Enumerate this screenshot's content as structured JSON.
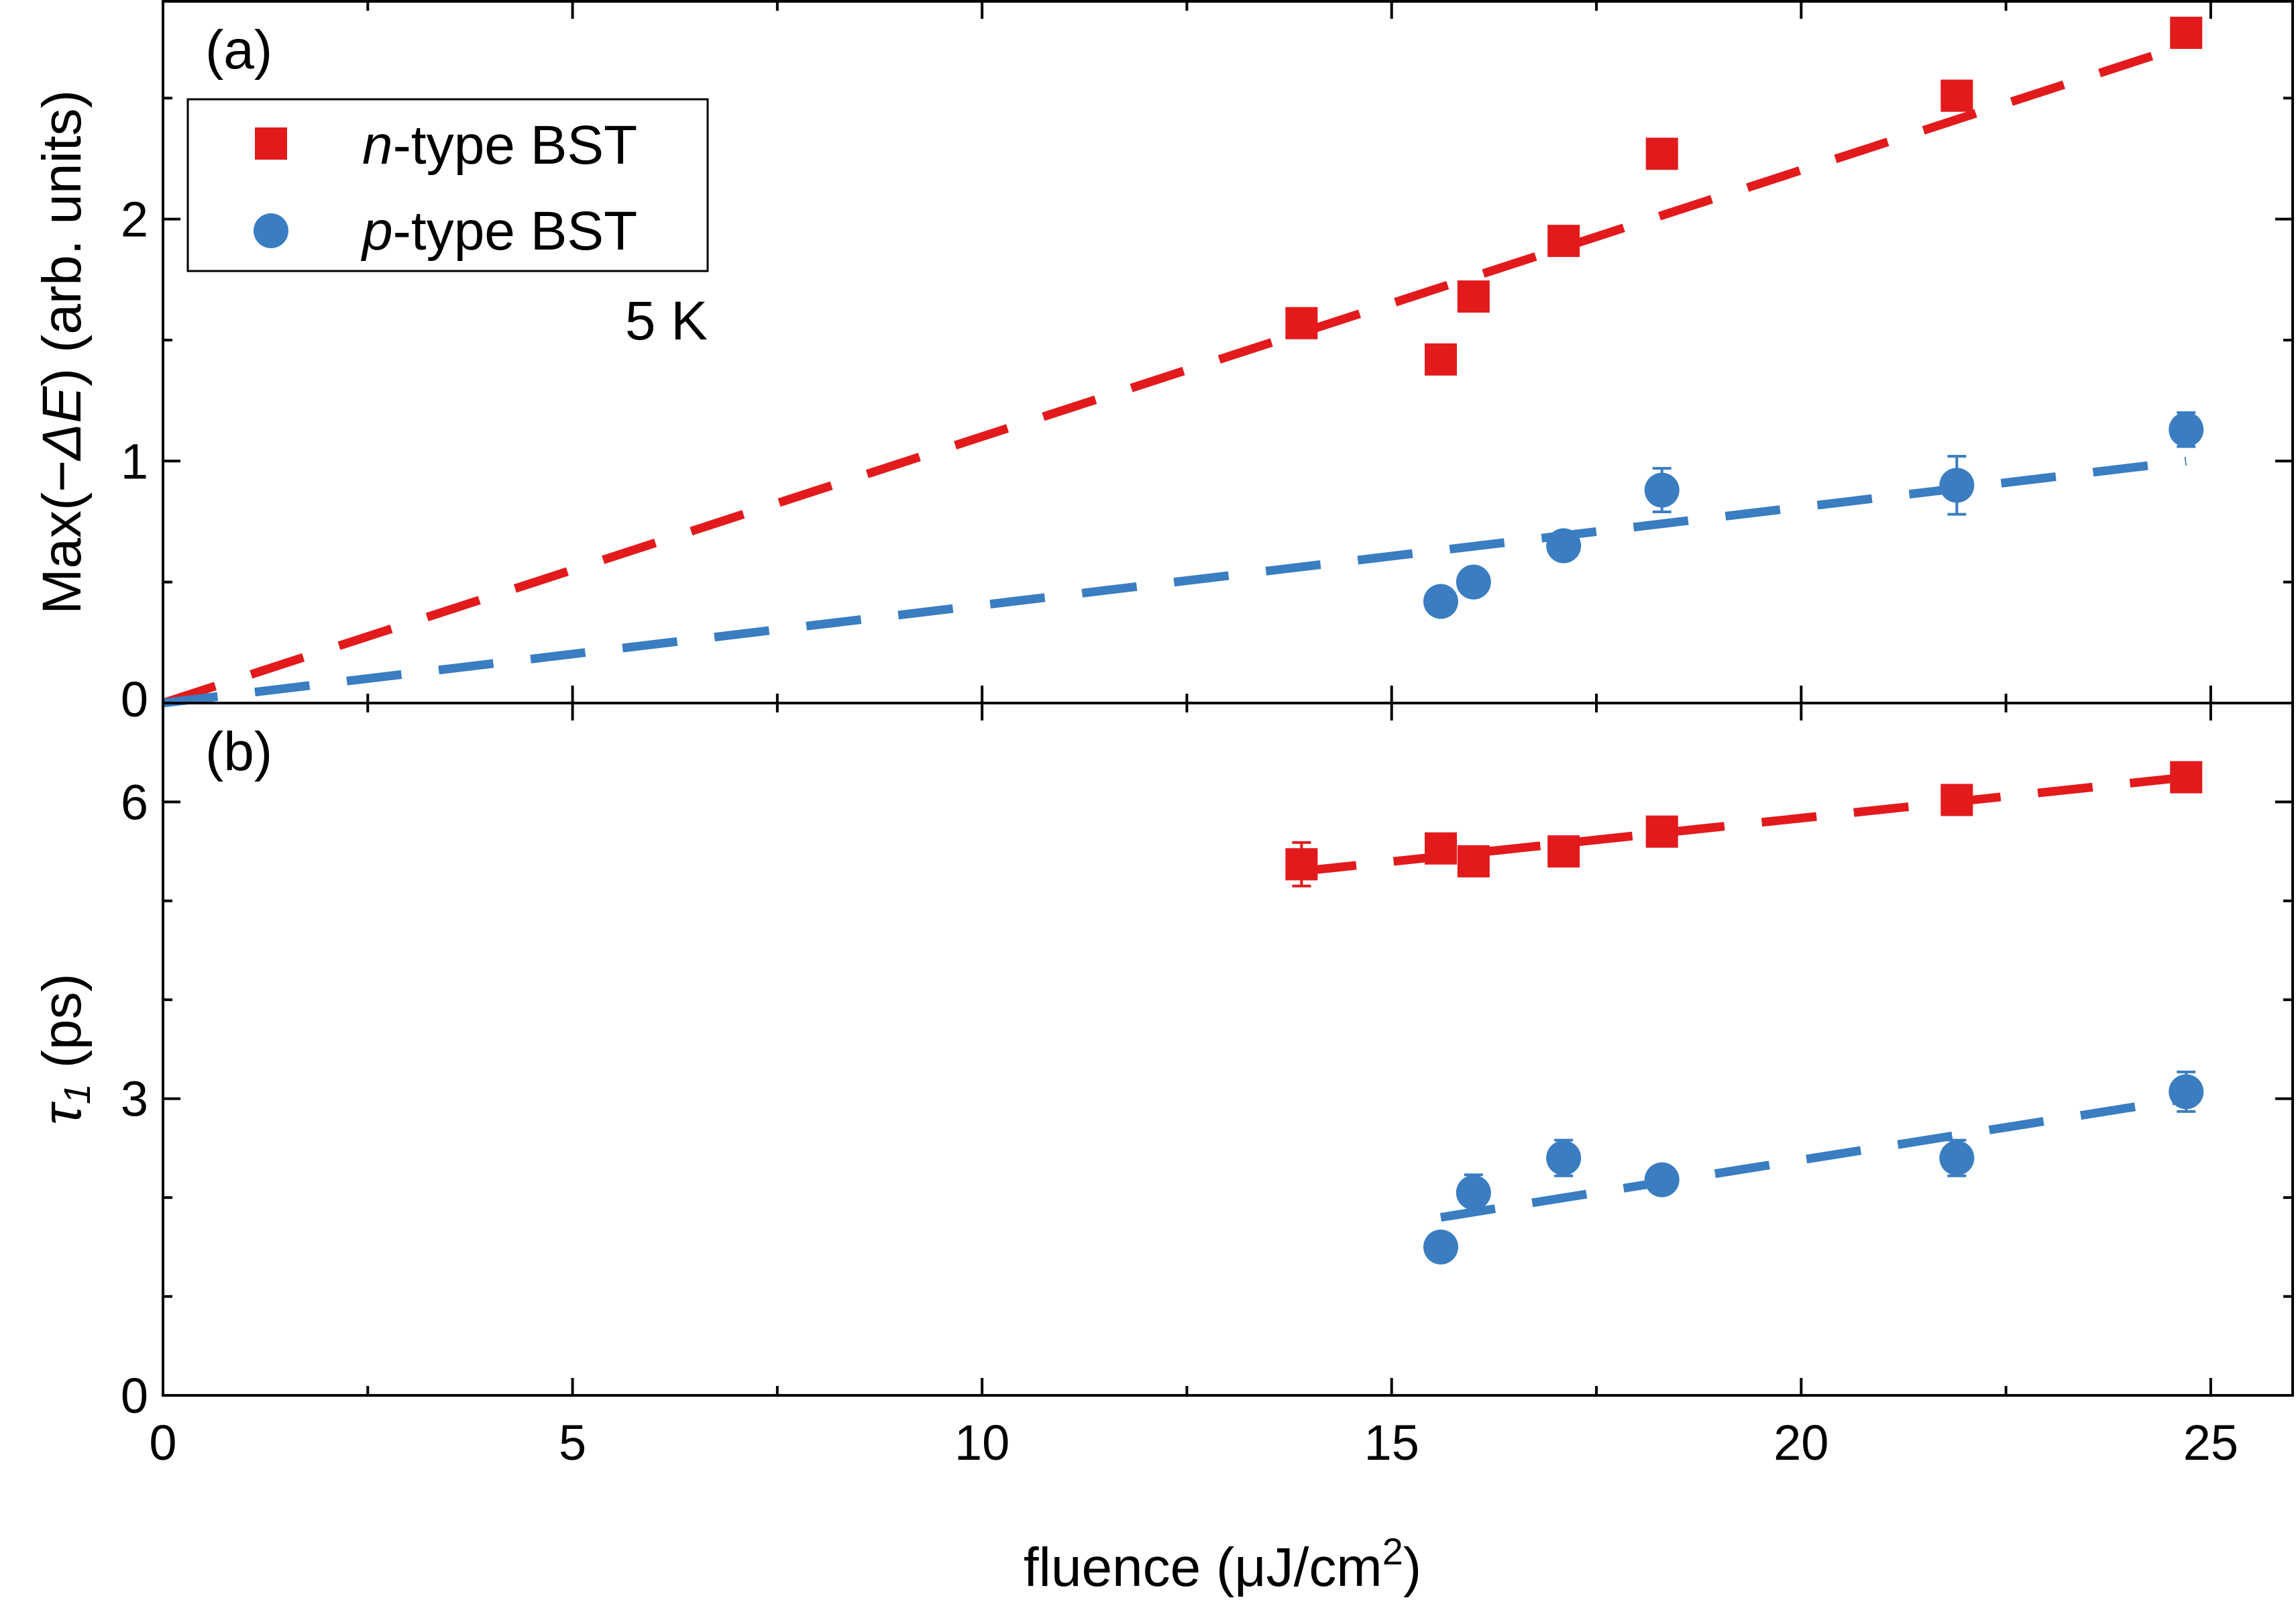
{
  "colors": {
    "n_type": "#e31a1c",
    "p_type": "#3a7dc1",
    "axis": "#000000"
  },
  "chart_data": [
    {
      "panel": "(a)",
      "type": "scatter",
      "ylabel_parts": {
        "pre": "Max(",
        "minus": "−",
        "delta": "Δ",
        "E": "E",
        "post": ") (arb. units)"
      },
      "xlim": [
        0,
        26
      ],
      "ylim": [
        0,
        2.9
      ],
      "xticks": [
        0,
        5,
        10,
        15,
        20,
        25
      ],
      "yticks": [
        0,
        1,
        2
      ],
      "yticks_minor": [
        0.5,
        1.5,
        2.5
      ],
      "annotation": "5 K",
      "legend": {
        "position": "top-left",
        "entries": [
          {
            "key": "n",
            "italic": "n",
            "rest": "-type BST",
            "marker": "square"
          },
          {
            "key": "p",
            "italic": "p",
            "rest": "-type BST",
            "marker": "circle"
          }
        ]
      },
      "series": [
        {
          "name": "n-type BST",
          "marker": "square",
          "x": [
            13.9,
            15.6,
            16.0,
            17.1,
            18.3,
            21.9,
            24.7
          ],
          "y": [
            1.57,
            1.42,
            1.68,
            1.91,
            2.27,
            2.51,
            2.77
          ],
          "yerr": [
            0,
            0,
            0,
            0,
            0,
            0,
            0
          ],
          "fit": {
            "x": [
              0,
              24.7
            ],
            "y": [
              0,
              2.72
            ]
          }
        },
        {
          "name": "p-type BST",
          "marker": "circle",
          "x": [
            15.6,
            16.0,
            17.1,
            18.3,
            21.9,
            24.7
          ],
          "y": [
            0.42,
            0.5,
            0.65,
            0.88,
            0.9,
            1.13
          ],
          "yerr": [
            0,
            0,
            0,
            0.09,
            0.12,
            0.07
          ],
          "fit": {
            "x": [
              0,
              24.7
            ],
            "y": [
              0,
              1.0
            ]
          }
        }
      ]
    },
    {
      "panel": "(b)",
      "type": "scatter",
      "ylabel_parts": {
        "tau": "τ",
        "sub": "1",
        "post": " (ps)"
      },
      "xlabel_parts": {
        "pre": "fluence (μJ/cm",
        "sup": "2",
        "post": ")"
      },
      "xlim": [
        0,
        26
      ],
      "ylim": [
        0,
        7
      ],
      "xticks": [
        0,
        5,
        10,
        15,
        20,
        25
      ],
      "yticks": [
        0,
        3,
        6
      ],
      "yticks_minor": [
        1,
        2,
        4,
        5,
        7
      ],
      "series": [
        {
          "name": "n-type BST",
          "marker": "square",
          "x": [
            13.9,
            15.6,
            16.0,
            17.1,
            18.3,
            21.9,
            24.7
          ],
          "y": [
            5.37,
            5.53,
            5.4,
            5.5,
            5.7,
            6.02,
            6.25
          ],
          "yerr": [
            0.22,
            0,
            0,
            0,
            0.13,
            0,
            0
          ],
          "fit": {
            "x": [
              13.9,
              24.7
            ],
            "y": [
              5.3,
              6.25
            ]
          }
        },
        {
          "name": "p-type BST",
          "marker": "circle",
          "x": [
            15.6,
            16.0,
            17.1,
            18.3,
            21.9,
            24.7
          ],
          "y": [
            1.5,
            2.05,
            2.4,
            2.18,
            2.4,
            3.07
          ],
          "yerr": [
            0.1,
            0.18,
            0.18,
            0.1,
            0.18,
            0.2
          ],
          "fit": {
            "x": [
              15.6,
              24.7
            ],
            "y": [
              1.8,
              3.0
            ]
          }
        }
      ]
    }
  ]
}
